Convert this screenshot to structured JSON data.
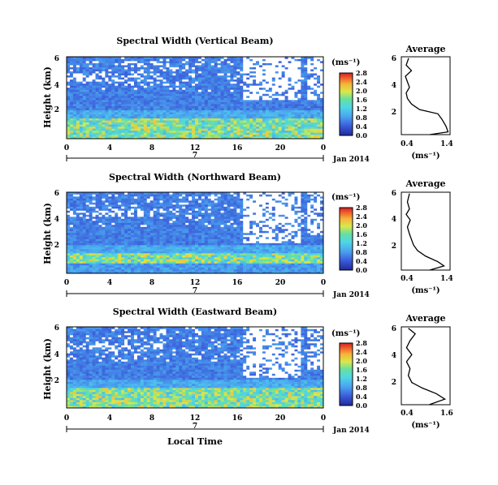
{
  "figure": {
    "x_axis_label": "Local Time",
    "date_label": "Jan 2014",
    "day_label": "7"
  },
  "chart_data": [
    {
      "type": "heatmap",
      "title": "Spectral Width (Vertical Beam)",
      "ylabel": "Height (km)",
      "yticks": [
        "2",
        "4",
        "6"
      ],
      "xticks": [
        "0",
        "4",
        "8",
        "12",
        "16",
        "20",
        "0"
      ],
      "colorbar_unit": "(ms⁻¹)",
      "colorbar_ticks": [
        "0.0",
        "0.4",
        "0.8",
        "1.2",
        "1.6",
        "2.0",
        "2.4",
        "2.8"
      ],
      "colorbar_range": [
        0.0,
        2.8
      ],
      "x_range_hours": [
        0,
        24
      ],
      "y_range_km": [
        0.4,
        6.0
      ],
      "average": {
        "title": "Average",
        "xlabel": "(ms⁻¹)",
        "xticks": [
          "0.4",
          "1.4"
        ],
        "yticks": [
          "2",
          "4",
          "6"
        ],
        "x_range": [
          0.3,
          1.5
        ],
        "profile": [
          {
            "height": 0.4,
            "value": 1.0
          },
          {
            "height": 0.6,
            "value": 1.45
          },
          {
            "height": 1.0,
            "value": 1.4
          },
          {
            "height": 1.5,
            "value": 1.3
          },
          {
            "height": 1.9,
            "value": 1.2
          },
          {
            "height": 2.2,
            "value": 0.75
          },
          {
            "height": 2.6,
            "value": 0.55
          },
          {
            "height": 3.0,
            "value": 0.45
          },
          {
            "height": 3.4,
            "value": 0.42
          },
          {
            "height": 3.8,
            "value": 0.5
          },
          {
            "height": 4.2,
            "value": 0.45
          },
          {
            "height": 4.6,
            "value": 0.4
          },
          {
            "height": 5.0,
            "value": 0.55
          },
          {
            "height": 5.4,
            "value": 0.42
          },
          {
            "height": 5.9,
            "value": 0.48
          }
        ]
      }
    },
    {
      "type": "heatmap",
      "title": "Spectral Width (Northward Beam)",
      "ylabel": "Height (km)",
      "yticks": [
        "2",
        "4",
        "6"
      ],
      "xticks": [
        "0",
        "4",
        "8",
        "12",
        "16",
        "20",
        "0"
      ],
      "colorbar_unit": "(ms⁻¹)",
      "colorbar_ticks": [
        "0.0",
        "0.4",
        "0.8",
        "1.2",
        "1.6",
        "2.0",
        "2.4",
        "2.8"
      ],
      "colorbar_range": [
        0.0,
        2.8
      ],
      "x_range_hours": [
        0,
        24
      ],
      "y_range_km": [
        0.4,
        6.0
      ],
      "average": {
        "title": "Average",
        "xlabel": "(ms⁻¹)",
        "xticks": [
          "0.4",
          "1.4"
        ],
        "yticks": [
          "2",
          "4",
          "6"
        ],
        "x_range": [
          0.3,
          1.5
        ],
        "profile": [
          {
            "height": 0.4,
            "value": 1.0
          },
          {
            "height": 0.7,
            "value": 1.35
          },
          {
            "height": 1.0,
            "value": 1.2
          },
          {
            "height": 1.4,
            "value": 0.9
          },
          {
            "height": 1.8,
            "value": 0.7
          },
          {
            "height": 2.2,
            "value": 0.6
          },
          {
            "height": 2.6,
            "value": 0.55
          },
          {
            "height": 3.0,
            "value": 0.5
          },
          {
            "height": 3.5,
            "value": 0.45
          },
          {
            "height": 4.0,
            "value": 0.52
          },
          {
            "height": 4.4,
            "value": 0.42
          },
          {
            "height": 4.8,
            "value": 0.5
          },
          {
            "height": 5.3,
            "value": 0.45
          },
          {
            "height": 5.9,
            "value": 0.5
          }
        ]
      }
    },
    {
      "type": "heatmap",
      "title": "Spectral Width (Eastward Beam)",
      "ylabel": "Height (km)",
      "yticks": [
        "2",
        "4",
        "6"
      ],
      "xticks": [
        "0",
        "4",
        "8",
        "12",
        "16",
        "20",
        "0"
      ],
      "colorbar_unit": "(ms⁻¹)",
      "colorbar_ticks": [
        "0.0",
        "0.4",
        "0.8",
        "1.2",
        "1.6",
        "2.0",
        "2.4",
        "2.8"
      ],
      "colorbar_range": [
        0.0,
        2.8
      ],
      "x_range_hours": [
        0,
        24
      ],
      "y_range_km": [
        0.4,
        6.0
      ],
      "average": {
        "title": "Average",
        "xlabel": "(ms⁻¹)",
        "xticks": [
          "0.4",
          "1.6"
        ],
        "yticks": [
          "2",
          "4",
          "6"
        ],
        "x_range": [
          0.3,
          1.7
        ],
        "profile": [
          {
            "height": 0.4,
            "value": 1.1
          },
          {
            "height": 0.8,
            "value": 1.55
          },
          {
            "height": 1.2,
            "value": 1.3
          },
          {
            "height": 1.6,
            "value": 0.9
          },
          {
            "height": 2.0,
            "value": 0.6
          },
          {
            "height": 2.5,
            "value": 0.5
          },
          {
            "height": 3.0,
            "value": 0.55
          },
          {
            "height": 3.5,
            "value": 0.45
          },
          {
            "height": 4.0,
            "value": 0.6
          },
          {
            "height": 4.5,
            "value": 0.45
          },
          {
            "height": 5.0,
            "value": 0.55
          },
          {
            "height": 5.5,
            "value": 0.7
          },
          {
            "height": 5.9,
            "value": 0.5
          }
        ]
      }
    }
  ]
}
